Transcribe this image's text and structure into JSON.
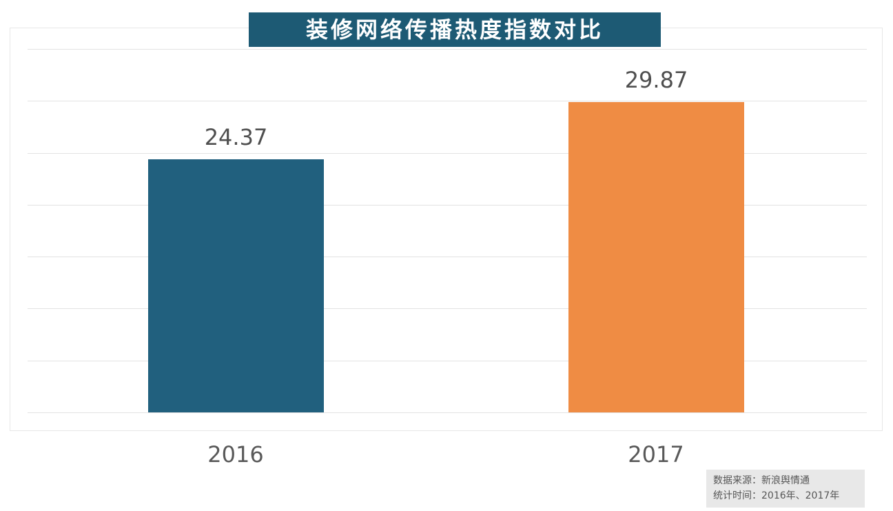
{
  "title": "装修网络传播热度指数对比",
  "source_box": {
    "line1": "数据来源：新浪舆情通",
    "line2": "统计时间：2016年、2017年"
  },
  "colors": {
    "title_bg": "#1d5a74",
    "title_text": "#ffffff",
    "grid_line": "#e2e2e2",
    "label_text": "#595959",
    "source_bg": "#e8e8e8",
    "source_text": "#555555"
  },
  "chart_data": {
    "type": "bar",
    "title": "装修网络传播热度指数对比",
    "categories": [
      "2016",
      "2017"
    ],
    "values": [
      24.37,
      29.87
    ],
    "value_labels": [
      "24.37",
      "29.87"
    ],
    "colors": [
      "#21607e",
      "#ef8c44"
    ],
    "ylim": [
      0,
      35
    ],
    "ytick_step": 5,
    "grid": "horizontal",
    "legend": "none",
    "xlabel": "",
    "ylabel": ""
  }
}
